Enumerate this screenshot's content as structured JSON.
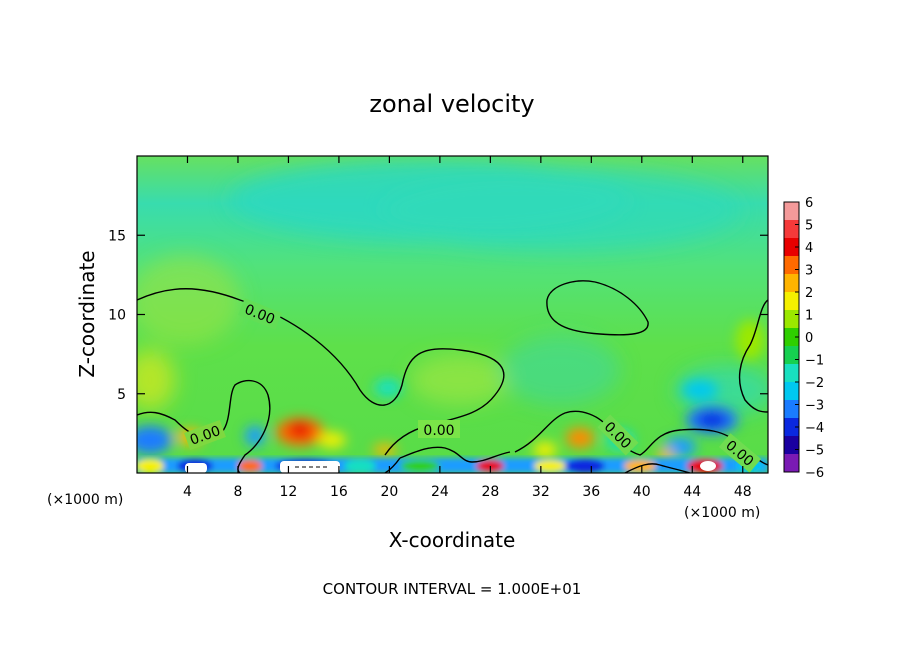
{
  "chart_data": {
    "type": "heatmap",
    "title": "zonal velocity",
    "xlabel": "X-coordinate",
    "ylabel": "Z-coordinate",
    "x_unit": "(×1000 m)",
    "x_unit_right": "(×1000 m)",
    "xlim": [
      0,
      50
    ],
    "ylim": [
      0,
      20
    ],
    "x_ticks": [
      4,
      8,
      12,
      16,
      20,
      24,
      28,
      32,
      36,
      40,
      44,
      48
    ],
    "y_ticks": [
      5,
      10,
      15
    ],
    "colorbar": {
      "ticks": [
        "6",
        "5",
        "4",
        "3",
        "2",
        "1",
        "0",
        "−1",
        "−2",
        "−3",
        "−4",
        "−5",
        "−6"
      ],
      "range": [
        -6,
        6
      ],
      "colors": [
        "#f49a9a",
        "#f53a3a",
        "#e80000",
        "#ff6a00",
        "#ffb400",
        "#f5f000",
        "#9be800",
        "#2fcf00",
        "#16d050",
        "#18e0c0",
        "#00c8f0",
        "#1a7cff",
        "#0a28e0",
        "#1a00a0",
        "#7a1ab4"
      ]
    },
    "contour_labels": [
      "0.00",
      "0.00",
      "0.00",
      "0.00",
      "0.00"
    ],
    "contour_interval": "CONTOUR INTERVAL = 1.000E+01"
  }
}
